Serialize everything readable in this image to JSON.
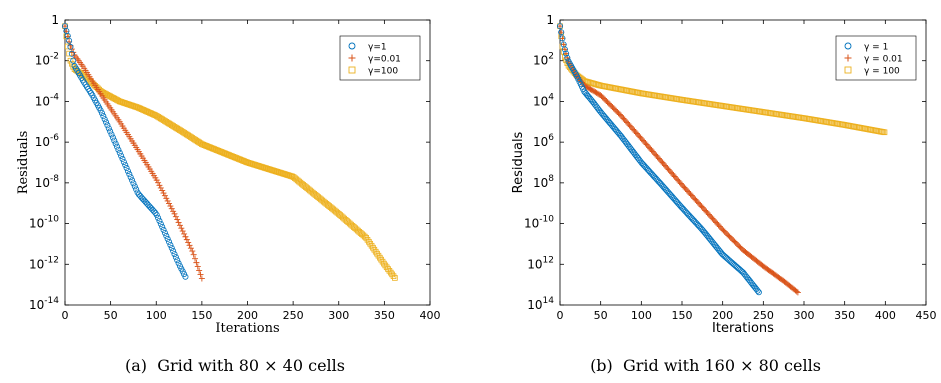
{
  "chart_data": [
    {
      "type": "scatter",
      "title": "",
      "xlabel": "Iterations",
      "ylabel": "Residuals",
      "xlim": [
        0,
        400
      ],
      "ylim_log10": [
        -14,
        0
      ],
      "y_scale": "log",
      "grid": false,
      "legend_position": "top-right",
      "x_ticks": [
        "0",
        "50",
        "100",
        "150",
        "200",
        "250",
        "300",
        "350",
        "400"
      ],
      "y_ticks": [
        {
          "base": "1",
          "exp": ""
        },
        {
          "base": "10",
          "exp": "-2"
        },
        {
          "base": "10",
          "exp": "-4"
        },
        {
          "base": "10",
          "exp": "-6"
        },
        {
          "base": "10",
          "exp": "-8"
        },
        {
          "base": "10",
          "exp": "-10"
        },
        {
          "base": "10",
          "exp": "-12"
        },
        {
          "base": "10",
          "exp": "-14"
        }
      ],
      "series": [
        {
          "name": "γ=1",
          "marker": "circle",
          "color": "#0072BD",
          "points": [
            [
              0,
              0.5
            ],
            [
              5,
              0.08
            ],
            [
              10,
              0.006
            ],
            [
              20,
              0.001
            ],
            [
              30,
              0.0002
            ],
            [
              40,
              3e-05
            ],
            [
              60,
              3e-07
            ],
            [
              80,
              3e-09
            ],
            [
              100,
              3e-10
            ],
            [
              115,
              1e-11
            ],
            [
              125,
              1e-12
            ],
            [
              133,
              2e-13
            ]
          ]
        },
        {
          "name": "γ=0.01",
          "marker": "plus",
          "color": "#D95319",
          "points": [
            [
              0,
              0.5
            ],
            [
              5,
              0.07
            ],
            [
              10,
              0.02
            ],
            [
              20,
              0.005
            ],
            [
              30,
              0.001
            ],
            [
              40,
              0.0002
            ],
            [
              60,
              1e-05
            ],
            [
              80,
              4e-07
            ],
            [
              100,
              1.5e-08
            ],
            [
              120,
              3e-10
            ],
            [
              140,
              4e-12
            ],
            [
              150,
              2e-13
            ]
          ]
        },
        {
          "name": "γ=100",
          "marker": "square",
          "color": "#EDB120",
          "points": [
            [
              0,
              0.5
            ],
            [
              3,
              0.05
            ],
            [
              6,
              0.01
            ],
            [
              10,
              0.004
            ],
            [
              20,
              0.002
            ],
            [
              40,
              0.0003
            ],
            [
              60,
              0.0001
            ],
            [
              80,
              5e-05
            ],
            [
              100,
              2e-05
            ],
            [
              130,
              3e-06
            ],
            [
              150,
              8e-07
            ],
            [
              200,
              1e-07
            ],
            [
              250,
              2e-08
            ],
            [
              300,
              3e-10
            ],
            [
              330,
              2e-11
            ],
            [
              350,
              1e-12
            ],
            [
              362,
              2e-13
            ]
          ]
        }
      ],
      "caption_label": "(a)",
      "caption_text": "Grid with 80 × 40 cells"
    },
    {
      "type": "scatter",
      "title": "",
      "xlabel": "Iterations",
      "ylabel": "Residuals",
      "xlim": [
        0,
        450
      ],
      "ylim_log10": [
        -14,
        0
      ],
      "y_scale": "log",
      "grid": false,
      "legend_position": "top-right",
      "x_ticks": [
        "0",
        "50",
        "100",
        "150",
        "200",
        "250",
        "300",
        "350",
        "400",
        "450"
      ],
      "y_ticks": [
        {
          "base": "1",
          "exp": ""
        },
        {
          "base": "10",
          "exp": "2"
        },
        {
          "base": "10",
          "exp": "4"
        },
        {
          "base": "10",
          "exp": "6"
        },
        {
          "base": "10",
          "exp": "8"
        },
        {
          "base": "10",
          "exp": "-10"
        },
        {
          "base": "10",
          "exp": "12"
        },
        {
          "base": "10",
          "exp": "14"
        }
      ],
      "series": [
        {
          "name": "γ = 1",
          "marker": "circle",
          "color": "#0072BD",
          "points": [
            [
              0,
              0.5
            ],
            [
              5,
              0.05
            ],
            [
              10,
              0.01
            ],
            [
              20,
              0.002
            ],
            [
              30,
              0.0003
            ],
            [
              40,
              0.0001
            ],
            [
              50,
              3e-05
            ],
            [
              75,
              2e-06
            ],
            [
              100,
              1e-07
            ],
            [
              125,
              8e-09
            ],
            [
              150,
              6e-10
            ],
            [
              175,
              5e-11
            ],
            [
              200,
              3e-12
            ],
            [
              225,
              4e-13
            ],
            [
              245,
              4e-14
            ]
          ]
        },
        {
          "name": "γ = 0.01",
          "marker": "plus",
          "color": "#D95319",
          "points": [
            [
              0,
              0.5
            ],
            [
              5,
              0.05
            ],
            [
              10,
              0.01
            ],
            [
              20,
              0.002
            ],
            [
              30,
              0.0006
            ],
            [
              50,
              0.0002
            ],
            [
              75,
              2e-05
            ],
            [
              100,
              1.5e-06
            ],
            [
              150,
              8e-09
            ],
            [
              200,
              5e-11
            ],
            [
              225,
              5e-12
            ],
            [
              250,
              8e-13
            ],
            [
              275,
              1.5e-13
            ],
            [
              293,
              4e-14
            ]
          ]
        },
        {
          "name": "γ = 100",
          "marker": "square",
          "color": "#EDB120",
          "points": [
            [
              0,
              0.5
            ],
            [
              3,
              0.05
            ],
            [
              6,
              0.015
            ],
            [
              10,
              0.006
            ],
            [
              20,
              0.002
            ],
            [
              30,
              0.001
            ],
            [
              50,
              0.0006
            ],
            [
              100,
              0.00025
            ],
            [
              150,
              0.00012
            ],
            [
              200,
              6e-05
            ],
            [
              250,
              3e-05
            ],
            [
              300,
              1.5e-05
            ],
            [
              350,
              7e-06
            ],
            [
              400,
              3e-06
            ]
          ]
        }
      ],
      "caption_label": "(b)",
      "caption_text": "Grid with 160 × 80 cells"
    }
  ]
}
